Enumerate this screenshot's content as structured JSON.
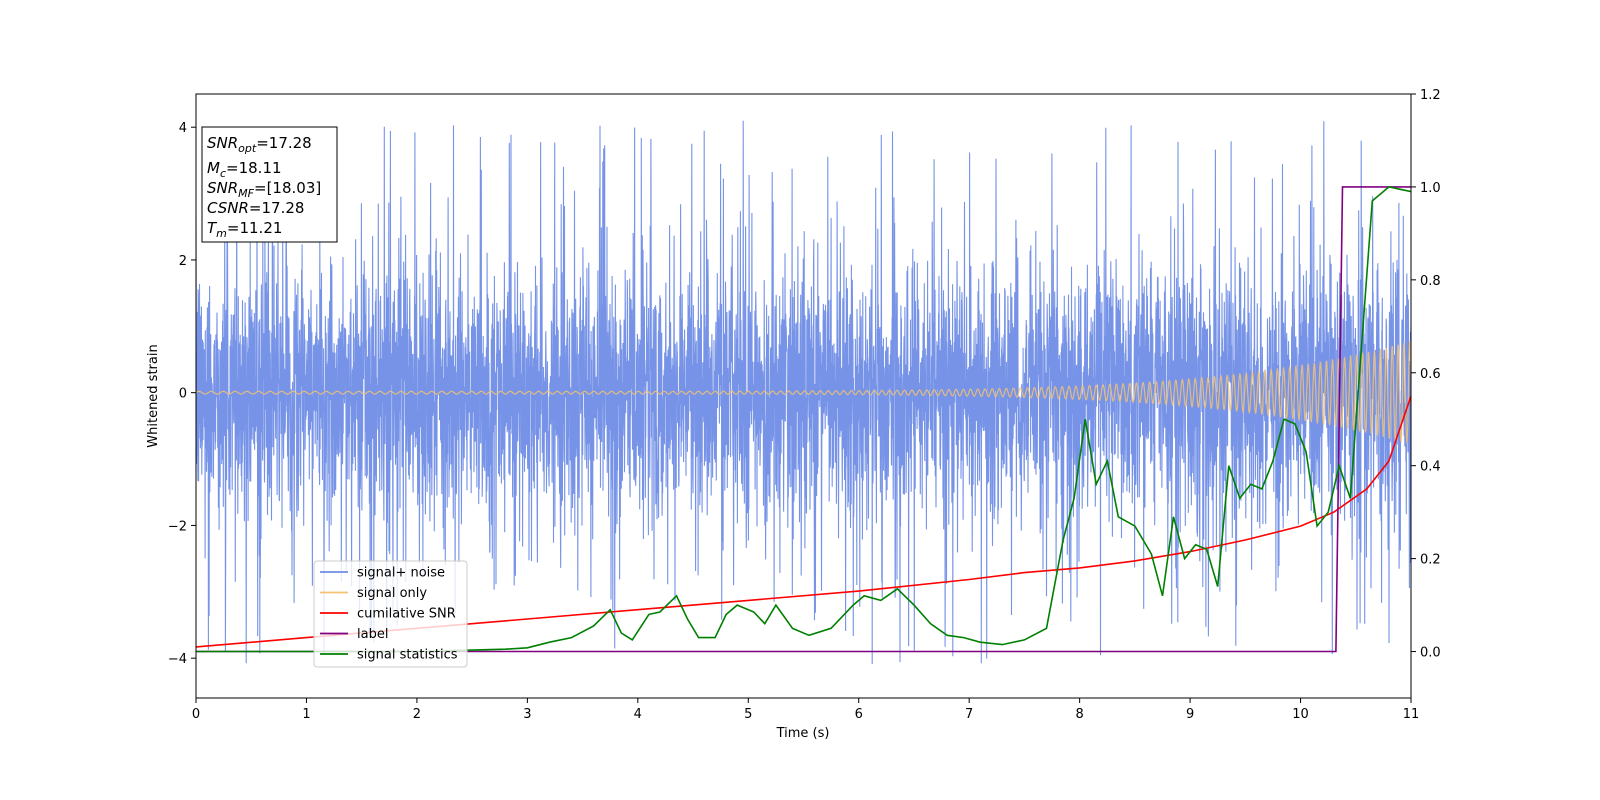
{
  "chart_data": {
    "type": "line",
    "xlabel": "Time (s)",
    "ylabel": "Whitened strain",
    "xlim": [
      0,
      11
    ],
    "ylim": [
      -4.6,
      4.5
    ],
    "y2lim": [
      -0.1,
      1.2
    ],
    "x_ticks": [
      0,
      1,
      2,
      3,
      4,
      5,
      6,
      7,
      8,
      9,
      10,
      11
    ],
    "y_ticks": [
      -4,
      -2,
      0,
      2,
      4
    ],
    "y2_ticks": [
      0.0,
      0.2,
      0.4,
      0.6,
      0.8,
      1.0,
      1.2
    ],
    "grid": false,
    "legend_position": "lower-left",
    "info_box": {
      "position": "top-left",
      "lines": [
        {
          "main": "SNR",
          "sub": "opt",
          "rest": "=17.28"
        },
        {
          "main": "M",
          "sub": "c",
          "rest": "=18.11"
        },
        {
          "main": "SNR",
          "sub": "MF",
          "rest": "=[18.03]"
        },
        {
          "main": "CSNR",
          "sub": "",
          "rest": "=17.28"
        },
        {
          "main": "T",
          "sub": "m",
          "rest": "=11.21"
        }
      ]
    },
    "series": [
      {
        "name": "signal+ noise",
        "axis": "left",
        "color": "#6f8de6",
        "kind": "noise",
        "amplitude_typical": 1.6,
        "amplitude_peak": 4.1,
        "duration": 11
      },
      {
        "name": "signal only",
        "axis": "left",
        "color": "#f5c272",
        "kind": "chirp",
        "amplitude_start": 0.02,
        "amplitude_end": 0.78,
        "duration": 11
      },
      {
        "name": "cumilative SNR",
        "axis": "right",
        "color": "#ff0000",
        "x": [
          0,
          1,
          2,
          3,
          4,
          5,
          6,
          7,
          7.5,
          8,
          8.5,
          9,
          9.5,
          10,
          10.3,
          10.6,
          10.8,
          11
        ],
        "y": [
          0.01,
          0.03,
          0.05,
          0.07,
          0.09,
          0.11,
          0.13,
          0.155,
          0.17,
          0.18,
          0.195,
          0.215,
          0.24,
          0.27,
          0.3,
          0.35,
          0.41,
          0.55
        ]
      },
      {
        "name": "label",
        "axis": "right",
        "color": "#800080",
        "x": [
          0,
          10.32,
          10.38,
          11
        ],
        "y": [
          0.0,
          0.0,
          1.0,
          1.0
        ]
      },
      {
        "name": "signal statistics",
        "axis": "right",
        "color": "#008000",
        "x": [
          0,
          0.5,
          1,
          1.5,
          2,
          2.5,
          2.8,
          3.0,
          3.2,
          3.4,
          3.6,
          3.75,
          3.85,
          3.95,
          4.1,
          4.2,
          4.35,
          4.45,
          4.55,
          4.7,
          4.8,
          4.9,
          5.05,
          5.15,
          5.25,
          5.4,
          5.55,
          5.75,
          5.95,
          6.05,
          6.2,
          6.35,
          6.5,
          6.65,
          6.8,
          6.95,
          7.1,
          7.3,
          7.5,
          7.7,
          7.85,
          7.95,
          8.05,
          8.15,
          8.25,
          8.35,
          8.5,
          8.65,
          8.75,
          8.85,
          8.95,
          9.05,
          9.15,
          9.25,
          9.35,
          9.45,
          9.55,
          9.65,
          9.75,
          9.85,
          9.95,
          10.05,
          10.15,
          10.25,
          10.35,
          10.45,
          10.55,
          10.65,
          10.8,
          11
        ],
        "y": [
          0.0,
          0.0,
          0.0,
          0.0,
          0.0,
          0.003,
          0.005,
          0.008,
          0.02,
          0.03,
          0.055,
          0.09,
          0.04,
          0.025,
          0.08,
          0.085,
          0.12,
          0.07,
          0.03,
          0.03,
          0.08,
          0.1,
          0.085,
          0.06,
          0.1,
          0.05,
          0.035,
          0.05,
          0.1,
          0.12,
          0.11,
          0.135,
          0.1,
          0.06,
          0.035,
          0.03,
          0.02,
          0.015,
          0.025,
          0.05,
          0.24,
          0.33,
          0.5,
          0.36,
          0.41,
          0.29,
          0.27,
          0.21,
          0.12,
          0.29,
          0.2,
          0.23,
          0.22,
          0.14,
          0.4,
          0.33,
          0.36,
          0.35,
          0.41,
          0.5,
          0.49,
          0.43,
          0.27,
          0.3,
          0.4,
          0.33,
          0.65,
          0.97,
          1.0,
          0.99
        ]
      }
    ]
  }
}
